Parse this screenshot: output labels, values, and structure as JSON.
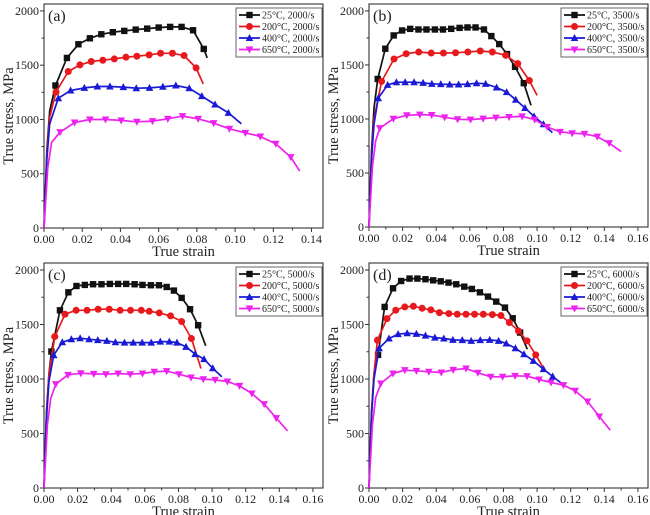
{
  "figure": {
    "description": "True stress vs true strain curves at four strain rates and four temperatures"
  },
  "chart_data": [
    {
      "type": "line",
      "panel_label": "(a)",
      "xlabel": "True strain",
      "ylabel": "True stress, MPa",
      "xlim": [
        0,
        0.146
      ],
      "ylim": [
        0,
        2064
      ],
      "xticks": [
        0,
        0.02,
        0.04,
        0.06,
        0.08,
        0.1,
        0.12,
        0.14
      ],
      "xtick_labels": [
        "0.00",
        "0.02",
        "0.04",
        "0.06",
        "0.08",
        "0.10",
        "0.12",
        "0.14"
      ],
      "yticks": [
        0,
        500,
        1000,
        1500,
        2000
      ],
      "ytick_labels": [
        "0",
        "500",
        "1000",
        "1500",
        "2000"
      ],
      "legend_position": "top-right",
      "grid": false,
      "series": [
        {
          "name": "25°C, 2000/s",
          "color": "#111111",
          "marker": "square",
          "x": [
            0,
            0.0015,
            0.003,
            0.006,
            0.012,
            0.018,
            0.024,
            0.03,
            0.036,
            0.042,
            0.048,
            0.054,
            0.06,
            0.066,
            0.072,
            0.078,
            0.0836,
            0.0854
          ],
          "y": [
            0,
            720,
            1080,
            1313,
            1567,
            1693,
            1748,
            1785,
            1804,
            1816,
            1828,
            1837,
            1847,
            1853,
            1853,
            1822,
            1650,
            1567
          ]
        },
        {
          "name": "200°C, 2000/s",
          "color": "#e8191c",
          "marker": "circle",
          "x": [
            0,
            0.0015,
            0.003,
            0.0063,
            0.0127,
            0.0188,
            0.0247,
            0.0308,
            0.0368,
            0.0429,
            0.0486,
            0.055,
            0.061,
            0.0672,
            0.0733,
            0.0796,
            0.0833
          ],
          "y": [
            0,
            680,
            1020,
            1252,
            1442,
            1503,
            1534,
            1546,
            1558,
            1574,
            1583,
            1595,
            1610,
            1610,
            1589,
            1475,
            1328
          ]
        },
        {
          "name": "400°C, 2000/s",
          "color": "#1a1ad6",
          "marker": "triangle-up",
          "x": [
            0,
            0.0015,
            0.003,
            0.0075,
            0.0139,
            0.0211,
            0.0279,
            0.0345,
            0.0415,
            0.0483,
            0.0552,
            0.0622,
            0.069,
            0.076,
            0.0826,
            0.0895,
            0.0965,
            0.1033
          ],
          "y": [
            0,
            640,
            960,
            1196,
            1267,
            1291,
            1304,
            1304,
            1298,
            1288,
            1291,
            1301,
            1313,
            1288,
            1215,
            1138,
            1061,
            960
          ]
        },
        {
          "name": "650°C, 2000/s",
          "color": "#ee22ee",
          "marker": "triangle-down",
          "x": [
            0,
            0.002,
            0.004,
            0.0084,
            0.016,
            0.024,
            0.0322,
            0.0404,
            0.0486,
            0.0568,
            0.0648,
            0.0725,
            0.0807,
            0.0888,
            0.097,
            0.1054,
            0.1132,
            0.1213,
            0.1291,
            0.1338
          ],
          "y": [
            0,
            560,
            790,
            883,
            972,
            1000,
            1000,
            991,
            979,
            985,
            1006,
            1031,
            1006,
            966,
            914,
            877,
            843,
            776,
            653,
            525
          ]
        }
      ]
    },
    {
      "type": "line",
      "panel_label": "(b)",
      "xlabel": "True strain",
      "ylabel": "True stress, MPa",
      "xlim": [
        0,
        0.166
      ],
      "ylim": [
        0,
        2064
      ],
      "xticks": [
        0,
        0.02,
        0.04,
        0.06,
        0.08,
        0.1,
        0.12,
        0.14,
        0.16
      ],
      "xtick_labels": [
        "0.00",
        "0.02",
        "0.04",
        "0.06",
        "0.08",
        "0.10",
        "0.12",
        "0.14",
        "0.16"
      ],
      "yticks": [
        0,
        500,
        1000,
        1500,
        2000
      ],
      "ytick_labels": [
        "0",
        "500",
        "1000",
        "1500",
        "2000"
      ],
      "legend_position": "top-right",
      "grid": false,
      "series": [
        {
          "name": "25°C, 3500/s",
          "color": "#111111",
          "marker": "square",
          "x": [
            0,
            0.0015,
            0.003,
            0.0052,
            0.0097,
            0.0147,
            0.0197,
            0.0245,
            0.0294,
            0.0342,
            0.0392,
            0.044,
            0.0489,
            0.0539,
            0.0586,
            0.0634,
            0.0684,
            0.0728,
            0.0775,
            0.0821,
            0.0869,
            0.0921,
            0.0964
          ],
          "y": [
            0,
            700,
            1100,
            1370,
            1650,
            1773,
            1819,
            1834,
            1828,
            1828,
            1828,
            1828,
            1834,
            1843,
            1847,
            1847,
            1828,
            1767,
            1693,
            1601,
            1482,
            1331,
            1126
          ]
        },
        {
          "name": "200°C, 3500/s",
          "color": "#e8191c",
          "marker": "circle",
          "x": [
            0,
            0.0015,
            0.003,
            0.0075,
            0.0149,
            0.0221,
            0.0296,
            0.037,
            0.0443,
            0.0515,
            0.0588,
            0.0662,
            0.0734,
            0.0813,
            0.0885,
            0.0954,
            0.1
          ],
          "y": [
            0,
            650,
            1000,
            1348,
            1555,
            1604,
            1620,
            1610,
            1610,
            1613,
            1620,
            1629,
            1620,
            1589,
            1512,
            1356,
            1218
          ]
        },
        {
          "name": "400°C, 3500/s",
          "color": "#1a1ad6",
          "marker": "triangle-up",
          "x": [
            0,
            0.0015,
            0.003,
            0.0055,
            0.0111,
            0.0163,
            0.0215,
            0.0268,
            0.0322,
            0.0374,
            0.0427,
            0.048,
            0.0533,
            0.0586,
            0.064,
            0.0694,
            0.0759,
            0.0819,
            0.0873,
            0.0928,
            0.0982,
            0.1038,
            0.1091
          ],
          "y": [
            0,
            620,
            950,
            1192,
            1315,
            1340,
            1340,
            1340,
            1334,
            1325,
            1322,
            1319,
            1319,
            1322,
            1331,
            1325,
            1291,
            1248,
            1178,
            1101,
            1024,
            951,
            874
          ]
        },
        {
          "name": "650°C, 3500/s",
          "color": "#ee22ee",
          "marker": "triangle-down",
          "x": [
            0,
            0.002,
            0.004,
            0.0064,
            0.0145,
            0.0225,
            0.0302,
            0.0373,
            0.045,
            0.0527,
            0.0604,
            0.0679,
            0.0755,
            0.0833,
            0.0911,
            0.0986,
            0.106,
            0.1137,
            0.1209,
            0.1282,
            0.1358,
            0.1429,
            0.15
          ],
          "y": [
            0,
            560,
            800,
            915,
            1002,
            1034,
            1040,
            1037,
            1015,
            997,
            994,
            1003,
            1012,
            1018,
            1024,
            994,
            926,
            880,
            868,
            862,
            837,
            776,
            699
          ]
        }
      ]
    },
    {
      "type": "line",
      "panel_label": "(c)",
      "xlabel": "True strain",
      "ylabel": "True stress, MPa",
      "xlim": [
        0,
        0.166
      ],
      "ylim": [
        0,
        2064
      ],
      "xticks": [
        0,
        0.02,
        0.04,
        0.06,
        0.08,
        0.1,
        0.12,
        0.14,
        0.16
      ],
      "xtick_labels": [
        "0.00",
        "0.02",
        "0.04",
        "0.06",
        "0.08",
        "0.10",
        "0.12",
        "0.14",
        "0.16"
      ],
      "yticks": [
        0,
        500,
        1000,
        1500,
        2000
      ],
      "ytick_labels": [
        "0",
        "500",
        "1000",
        "1500",
        "2000"
      ],
      "legend_position": "top-right",
      "grid": false,
      "series": [
        {
          "name": "25°C, 5000/s",
          "color": "#111111",
          "marker": "square",
          "x": [
            0,
            0.0015,
            0.003,
            0.0044,
            0.0095,
            0.0145,
            0.0193,
            0.0243,
            0.0292,
            0.0342,
            0.0392,
            0.0441,
            0.0489,
            0.0539,
            0.0586,
            0.0636,
            0.0684,
            0.073,
            0.0773,
            0.0819,
            0.0869,
            0.0917,
            0.0962
          ],
          "y": [
            0,
            700,
            1050,
            1252,
            1630,
            1795,
            1853,
            1863,
            1869,
            1869,
            1872,
            1872,
            1872,
            1869,
            1863,
            1860,
            1860,
            1844,
            1811,
            1744,
            1640,
            1493,
            1304
          ]
        },
        {
          "name": "200°C, 5000/s",
          "color": "#e8191c",
          "marker": "circle",
          "x": [
            0,
            0.0015,
            0.003,
            0.0064,
            0.0125,
            0.0191,
            0.0256,
            0.0322,
            0.0388,
            0.0453,
            0.0515,
            0.0579,
            0.0626,
            0.0686,
            0.0753,
            0.0819,
            0.0877,
            0.0934
          ],
          "y": [
            0,
            680,
            1050,
            1389,
            1594,
            1630,
            1630,
            1640,
            1640,
            1630,
            1630,
            1630,
            1621,
            1606,
            1579,
            1527,
            1371,
            1096
          ]
        },
        {
          "name": "400°C, 5000/s",
          "color": "#1a1ad6",
          "marker": "triangle-up",
          "x": [
            0,
            0.0015,
            0.003,
            0.0058,
            0.0109,
            0.0163,
            0.0215,
            0.0268,
            0.032,
            0.0374,
            0.0425,
            0.0479,
            0.0531,
            0.0584,
            0.0638,
            0.0692,
            0.0746,
            0.0791,
            0.0845,
            0.0899,
            0.0952,
            0.1004,
            0.1058
          ],
          "y": [
            0,
            640,
            980,
            1218,
            1337,
            1365,
            1374,
            1365,
            1356,
            1350,
            1337,
            1334,
            1334,
            1334,
            1334,
            1343,
            1343,
            1334,
            1295,
            1228,
            1182,
            1099,
            1020
          ]
        },
        {
          "name": "650°C, 5000/s",
          "color": "#ee22ee",
          "marker": "triangle-down",
          "x": [
            0,
            0.002,
            0.004,
            0.007,
            0.0143,
            0.0219,
            0.0296,
            0.0368,
            0.0441,
            0.0513,
            0.0586,
            0.0656,
            0.073,
            0.0803,
            0.0875,
            0.0948,
            0.1018,
            0.1091,
            0.1163,
            0.1237,
            0.131,
            0.1382,
            0.1449
          ],
          "y": [
            0,
            580,
            820,
            953,
            1038,
            1053,
            1047,
            1044,
            1050,
            1044,
            1050,
            1066,
            1072,
            1044,
            1014,
            998,
            992,
            977,
            937,
            867,
            769,
            641,
            525
          ]
        }
      ]
    },
    {
      "type": "line",
      "panel_label": "(d)",
      "xlabel": "True strain",
      "ylabel": "True stress, MPa",
      "xlim": [
        0,
        0.166
      ],
      "ylim": [
        0,
        2064
      ],
      "xticks": [
        0,
        0.02,
        0.04,
        0.06,
        0.08,
        0.1,
        0.12,
        0.14,
        0.16
      ],
      "xtick_labels": [
        "0.00",
        "0.02",
        "0.04",
        "0.06",
        "0.08",
        "0.10",
        "0.12",
        "0.14",
        "0.16"
      ],
      "yticks": [
        0,
        500,
        1000,
        1500,
        2000
      ],
      "ytick_labels": [
        "0",
        "500",
        "1000",
        "1500",
        "2000"
      ],
      "legend_position": "top-right",
      "grid": false,
      "series": [
        {
          "name": "25°C, 6000/s",
          "color": "#111111",
          "marker": "square",
          "x": [
            0,
            0.0015,
            0.003,
            0.0054,
            0.0093,
            0.0143,
            0.0191,
            0.0241,
            0.0288,
            0.0336,
            0.0382,
            0.0427,
            0.0473,
            0.0519,
            0.0567,
            0.0612,
            0.066,
            0.0708,
            0.0757,
            0.0809,
            0.0855,
            0.0899,
            0.0942
          ],
          "y": [
            0,
            700,
            1050,
            1221,
            1661,
            1832,
            1899,
            1921,
            1921,
            1915,
            1905,
            1896,
            1884,
            1869,
            1847,
            1826,
            1795,
            1756,
            1710,
            1655,
            1557,
            1426,
            1273
          ]
        },
        {
          "name": "200°C, 6000/s",
          "color": "#e8191c",
          "marker": "circle",
          "x": [
            0,
            0.0015,
            0.003,
            0.005,
            0.0107,
            0.0159,
            0.0213,
            0.0264,
            0.0316,
            0.0368,
            0.0419,
            0.0475,
            0.0525,
            0.0577,
            0.0628,
            0.068,
            0.0734,
            0.0785,
            0.0835,
            0.0889,
            0.094,
            0.0992,
            0.1042
          ],
          "y": [
            0,
            680,
            1050,
            1356,
            1554,
            1631,
            1661,
            1667,
            1649,
            1634,
            1609,
            1600,
            1594,
            1594,
            1594,
            1594,
            1591,
            1582,
            1518,
            1441,
            1350,
            1221,
            1090
          ]
        },
        {
          "name": "400°C, 6000/s",
          "color": "#1a1ad6",
          "marker": "triangle-up",
          "x": [
            0,
            0.0015,
            0.003,
            0.006,
            0.0119,
            0.0173,
            0.0227,
            0.0282,
            0.0336,
            0.0392,
            0.0445,
            0.0499,
            0.0555,
            0.0608,
            0.0662,
            0.0718,
            0.0771,
            0.0817,
            0.0871,
            0.0922,
            0.0978,
            0.1038,
            0.1093,
            0.1151
          ],
          "y": [
            0,
            660,
            1000,
            1282,
            1371,
            1411,
            1420,
            1414,
            1398,
            1380,
            1371,
            1359,
            1356,
            1350,
            1356,
            1359,
            1350,
            1325,
            1282,
            1227,
            1166,
            1090,
            1023,
            953
          ]
        },
        {
          "name": "650°C, 6000/s",
          "color": "#ee22ee",
          "marker": "triangle-down",
          "x": [
            0,
            0.002,
            0.004,
            0.007,
            0.0143,
            0.0213,
            0.0282,
            0.0356,
            0.043,
            0.0501,
            0.0577,
            0.0648,
            0.0724,
            0.0795,
            0.0869,
            0.094,
            0.1012,
            0.1083,
            0.1157,
            0.1227,
            0.13,
            0.137,
            0.1435
          ],
          "y": [
            0,
            580,
            830,
            959,
            1050,
            1081,
            1075,
            1066,
            1060,
            1084,
            1096,
            1057,
            1020,
            1020,
            1029,
            1026,
            995,
            968,
            944,
            892,
            794,
            656,
            531
          ]
        }
      ]
    }
  ]
}
